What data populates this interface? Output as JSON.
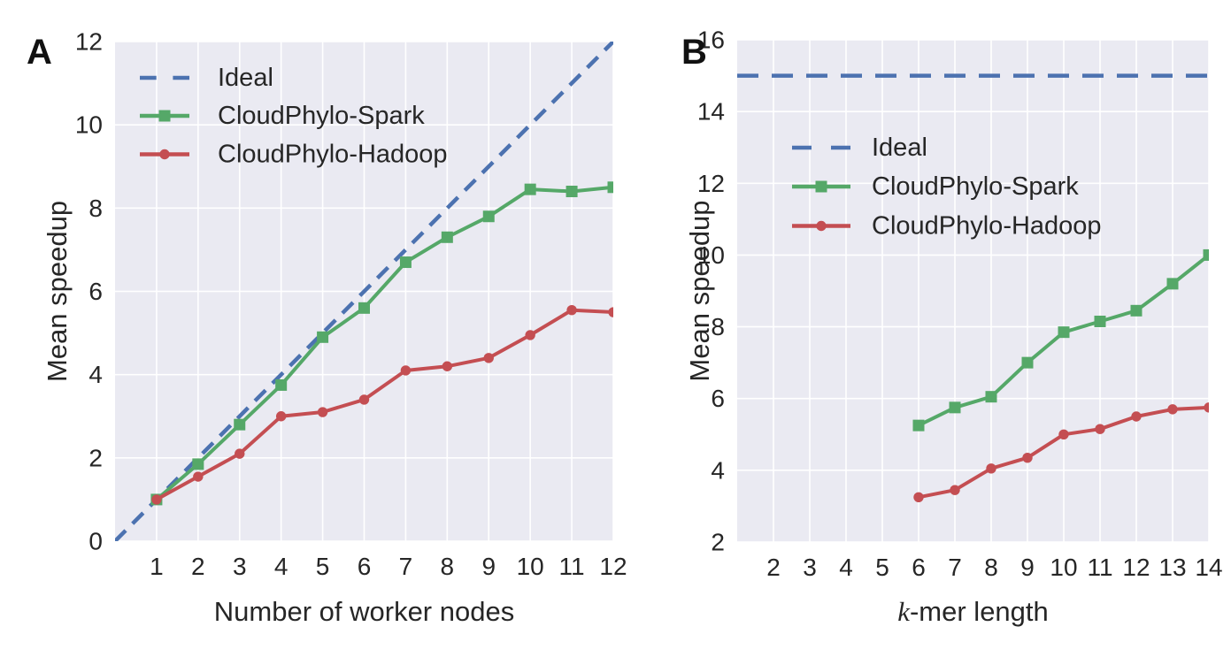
{
  "colors": {
    "plot_background": "#EAEAF2",
    "grid": "#FFFFFF",
    "text": "#262626",
    "ideal_blue": "#4C72B0",
    "spark_green": "#55A868",
    "hadoop_red": "#C44E52"
  },
  "chart_data": [
    {
      "id": "panel-a",
      "panel_label": "A",
      "type": "line",
      "title": "",
      "xlabel": {
        "italic": "",
        "text": "Number of worker nodes"
      },
      "ylabel": "Mean speedup",
      "xlim": [
        0,
        12
      ],
      "ylim": [
        0,
        12
      ],
      "xticks": [
        1,
        2,
        3,
        4,
        5,
        6,
        7,
        8,
        9,
        10,
        11,
        12
      ],
      "yticks": [
        0,
        2,
        4,
        6,
        8,
        10,
        12
      ],
      "grid": true,
      "legend_position": "upper-left",
      "series": [
        {
          "name": "Ideal",
          "color": "#4C72B0",
          "style": "dashed",
          "marker": "none",
          "x": [
            0,
            12
          ],
          "y": [
            0,
            12
          ]
        },
        {
          "name": "CloudPhylo-Spark",
          "color": "#55A868",
          "style": "solid",
          "marker": "square",
          "x": [
            1,
            2,
            3,
            4,
            5,
            6,
            7,
            8,
            9,
            10,
            11,
            12
          ],
          "y": [
            1.0,
            1.85,
            2.8,
            3.75,
            4.9,
            5.6,
            6.7,
            7.3,
            7.8,
            8.45,
            8.4,
            8.5
          ]
        },
        {
          "name": "CloudPhylo-Hadoop",
          "color": "#C44E52",
          "style": "solid",
          "marker": "circle",
          "x": [
            1,
            2,
            3,
            4,
            5,
            6,
            7,
            8,
            9,
            10,
            11,
            12
          ],
          "y": [
            1.0,
            1.55,
            2.1,
            3.0,
            3.1,
            3.4,
            4.1,
            4.2,
            4.4,
            4.95,
            5.55,
            5.5
          ]
        }
      ]
    },
    {
      "id": "panel-b",
      "panel_label": "B",
      "type": "line",
      "title": "",
      "xlabel": {
        "italic": "k",
        "text": "-mer length"
      },
      "ylabel": "Mean speedup",
      "xlim": [
        1,
        14
      ],
      "ylim": [
        2,
        16
      ],
      "xticks": [
        2,
        3,
        4,
        5,
        6,
        7,
        8,
        9,
        10,
        11,
        12,
        13,
        14
      ],
      "yticks": [
        2,
        4,
        6,
        8,
        10,
        12,
        14,
        16
      ],
      "grid": true,
      "legend_position": "center-left",
      "series": [
        {
          "name": "Ideal",
          "color": "#4C72B0",
          "style": "dashed",
          "marker": "none",
          "x": [
            1,
            14
          ],
          "y": [
            15,
            15
          ]
        },
        {
          "name": "CloudPhylo-Spark",
          "color": "#55A868",
          "style": "solid",
          "marker": "square",
          "x": [
            6,
            7,
            8,
            9,
            10,
            11,
            12,
            13,
            14
          ],
          "y": [
            5.25,
            5.75,
            6.05,
            7.0,
            7.85,
            8.15,
            8.45,
            9.2,
            10.0
          ]
        },
        {
          "name": "CloudPhylo-Hadoop",
          "color": "#C44E52",
          "style": "solid",
          "marker": "circle",
          "x": [
            6,
            7,
            8,
            9,
            10,
            11,
            12,
            13,
            14
          ],
          "y": [
            3.25,
            3.45,
            4.05,
            4.35,
            5.0,
            5.15,
            5.5,
            5.7,
            5.75
          ]
        }
      ]
    }
  ]
}
